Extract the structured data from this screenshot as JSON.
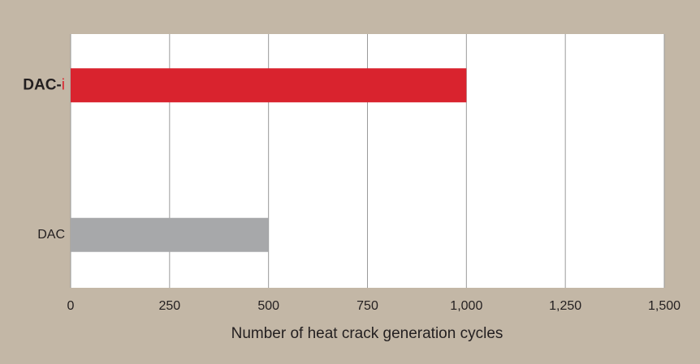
{
  "chart_data": {
    "type": "bar",
    "orientation": "horizontal",
    "x_label": "Number of heat crack generation cycles",
    "categories": [
      "DAC-i",
      "DAC"
    ],
    "values": [
      1000,
      500
    ],
    "colors": [
      "#d9232e",
      "#a7a8aa"
    ],
    "xlim": [
      0,
      1500
    ],
    "xticks": [
      0,
      250,
      500,
      750,
      {
        "value": 1000,
        "label": "1,000"
      },
      {
        "value": 1250,
        "label": "1,250"
      },
      {
        "value": 1500,
        "label": "1,500"
      }
    ],
    "grid": true
  }
}
